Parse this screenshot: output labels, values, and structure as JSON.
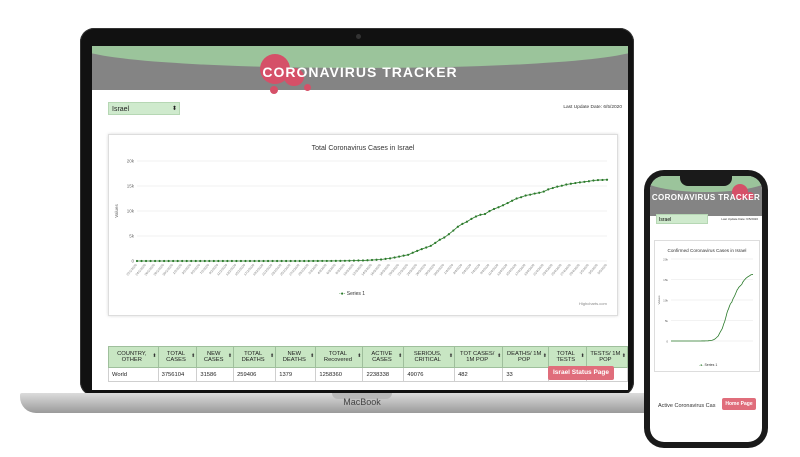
{
  "laptop": {
    "brand": "MacBook",
    "header": {
      "title": "CORONAVIRUS TRACKER"
    },
    "country_select": {
      "value": "Israel"
    },
    "last_update": "Last Update Date: 6/5/2020",
    "chart": {
      "title": "Total Coronavirus Cases in Israel",
      "legend": "Series 1",
      "credits": "Highcharts.com"
    },
    "table": {
      "headers": [
        "COUNTRY, OTHER",
        "TOTAL CASES",
        "NEW CASES",
        "TOTAL DEATHS",
        "NEW DEATHS",
        "TOTAL Recovered",
        "ACTIVE CASES",
        "SERIOUS, CRITICAL",
        "TOT CASES/ 1M POP",
        "DEATHS/ 1M POP",
        "TOTAL TESTS",
        "TESTS/ 1M POP"
      ],
      "rows": [
        [
          "World",
          "3756104",
          "31586",
          "259406",
          "1379",
          "1258360",
          "2238338",
          "49076",
          "482",
          "33",
          "0",
          ""
        ]
      ]
    },
    "status_button": "Israel Status Page"
  },
  "phone": {
    "header": {
      "title": "CORONAVIRUS TRACKER"
    },
    "country_select": {
      "value": "Israel"
    },
    "last_update": "Last Update Date: 6/5/2020",
    "chart_title": "Confirmed Coronavirus Cases in Israel",
    "legend": "Series 1",
    "active_label": "Active Coronavirus Cas",
    "home_button": "Home Page"
  },
  "colors": {
    "header_green": "#9bc49b",
    "header_gray": "#848484",
    "accent_red": "#d55068",
    "series": "#2a7a2a",
    "select_bg": "#cfeacd"
  },
  "chart_data": [
    {
      "type": "line",
      "title": "Total Coronavirus Cases in Israel",
      "ylabel": "Values",
      "xlabel": "",
      "ylim": [
        0,
        20000
      ],
      "yticks": [
        "0",
        "5k",
        "10k",
        "15k",
        "20k"
      ],
      "legend": "bottom",
      "series": [
        {
          "name": "Series 1",
          "x": [
            "22/1/2020",
            "23/1/2020",
            "24/1/2020",
            "25/1/2020",
            "26/1/2020",
            "27/1/2020",
            "28/1/2020",
            "29/1/2020",
            "30/1/2020",
            "31/1/2020",
            "1/2/2020",
            "2/2/2020",
            "3/2/2020",
            "4/2/2020",
            "5/2/2020",
            "6/2/2020",
            "7/2/2020",
            "8/2/2020",
            "9/2/2020",
            "10/2/2020",
            "11/2/2020",
            "12/2/2020",
            "13/2/2020",
            "14/2/2020",
            "15/2/2020",
            "16/2/2020",
            "17/2/2020",
            "18/2/2020",
            "19/2/2020",
            "20/2/2020",
            "21/2/2020",
            "22/2/2020",
            "23/2/2020",
            "24/2/2020",
            "25/2/2020",
            "26/2/2020",
            "27/2/2020",
            "28/2/2020",
            "29/2/2020",
            "1/3/2020",
            "2/3/2020",
            "3/3/2020",
            "4/3/2020",
            "5/3/2020",
            "6/3/2020",
            "7/3/2020",
            "8/3/2020",
            "9/3/2020",
            "10/3/2020",
            "11/3/2020",
            "12/3/2020",
            "13/3/2020",
            "14/3/2020",
            "15/3/2020",
            "16/3/2020",
            "17/3/2020",
            "18/3/2020",
            "19/3/2020",
            "20/3/2020",
            "21/3/2020",
            "22/3/2020",
            "23/3/2020",
            "24/3/2020",
            "25/3/2020",
            "26/3/2020",
            "27/3/2020",
            "28/3/2020",
            "29/3/2020",
            "30/3/2020",
            "31/3/2020",
            "1/4/2020",
            "2/4/2020",
            "3/4/2020",
            "4/4/2020",
            "5/4/2020",
            "6/4/2020",
            "7/4/2020",
            "8/4/2020",
            "9/4/2020",
            "10/4/2020",
            "11/4/2020",
            "12/4/2020",
            "13/4/2020",
            "14/4/2020",
            "15/4/2020",
            "16/4/2020",
            "17/4/2020",
            "18/4/2020",
            "19/4/2020",
            "20/4/2020",
            "21/4/2020",
            "22/4/2020",
            "23/4/2020",
            "24/4/2020",
            "25/4/2020",
            "26/4/2020",
            "27/4/2020",
            "28/4/2020",
            "29/4/2020",
            "30/4/2020",
            "1/5/2020",
            "2/5/2020",
            "3/5/2020",
            "4/5/2020",
            "5/5/2020"
          ],
          "values": [
            0,
            0,
            0,
            0,
            0,
            0,
            0,
            0,
            0,
            0,
            0,
            0,
            0,
            0,
            0,
            0,
            0,
            0,
            0,
            0,
            0,
            1,
            1,
            1,
            1,
            1,
            1,
            1,
            1,
            1,
            1,
            1,
            1,
            1,
            2,
            2,
            3,
            4,
            7,
            10,
            12,
            15,
            15,
            17,
            21,
            25,
            39,
            50,
            75,
            97,
            109,
            143,
            193,
            250,
            298,
            427,
            529,
            705,
            883,
            1071,
            1238,
            1656,
            2030,
            2369,
            2693,
            3035,
            3619,
            4247,
            4695,
            5358,
            6092,
            6857,
            7428,
            7851,
            8430,
            8904,
            9248,
            9404,
            9968,
            10408,
            10743,
            11145,
            11586,
            12046,
            12501,
            12758,
            13107,
            13265,
            13491,
            13654,
            13883,
            14326,
            14592,
            14882,
            15058,
            15298,
            15443,
            15589,
            15728,
            15834,
            15946,
            16101,
            16185,
            16208,
            16246
          ]
        }
      ]
    },
    {
      "type": "line",
      "title": "Confirmed Coronavirus Cases in Israel",
      "ylabel": "Values",
      "ylim": [
        0,
        20000
      ],
      "yticks": [
        "0",
        "5k",
        "10k",
        "15k",
        "20k"
      ],
      "legend": "bottom",
      "series": [
        {
          "name": "Series 1",
          "values": [
            0,
            0,
            0,
            0,
            0,
            0,
            0,
            0,
            0,
            0,
            0,
            0,
            0,
            0,
            0,
            0,
            0,
            0,
            0,
            0,
            0,
            1,
            1,
            1,
            1,
            1,
            1,
            1,
            1,
            1,
            1,
            1,
            1,
            1,
            2,
            2,
            3,
            4,
            7,
            10,
            12,
            15,
            15,
            17,
            21,
            25,
            39,
            50,
            75,
            97,
            109,
            143,
            193,
            250,
            298,
            427,
            529,
            705,
            883,
            1071,
            1238,
            1656,
            2030,
            2369,
            2693,
            3035,
            3619,
            4247,
            4695,
            5358,
            6092,
            6857,
            7428,
            7851,
            8430,
            8904,
            9248,
            9404,
            9968,
            10408,
            10743,
            11145,
            11586,
            12046,
            12501,
            12758,
            13107,
            13265,
            13491,
            13654,
            13883,
            14326,
            14592,
            14882,
            15058,
            15298,
            15443,
            15589,
            15728,
            15834,
            15946,
            16101,
            16185,
            16208,
            16246
          ]
        }
      ]
    }
  ]
}
